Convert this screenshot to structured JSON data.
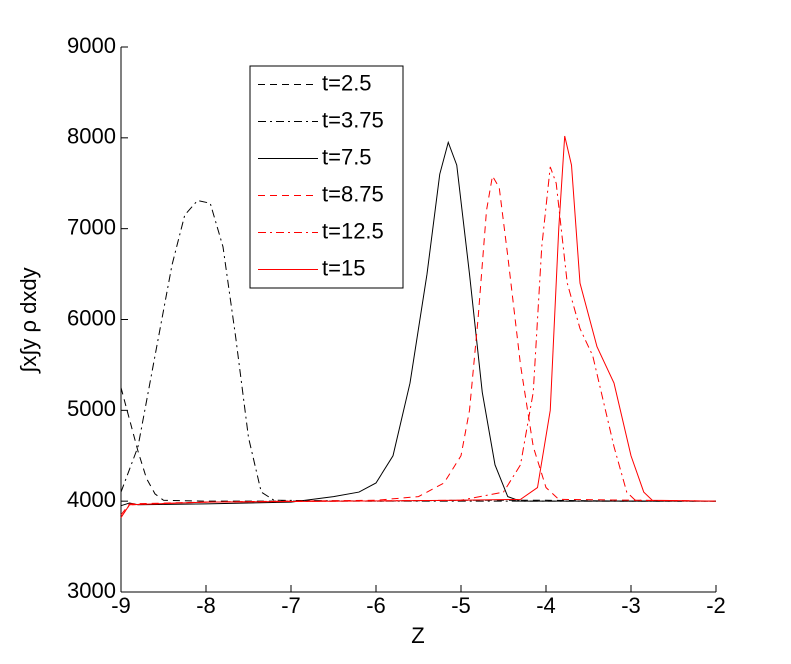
{
  "chart_data": {
    "type": "line",
    "xlabel": "Z",
    "ylabel": "∫x∫y ρ dxdy",
    "xlim": [
      -9,
      -2
    ],
    "ylim": [
      3000,
      9000
    ],
    "xticks": [
      -9,
      -8,
      -7,
      -6,
      -5,
      -4,
      -3,
      -2
    ],
    "yticks": [
      3000,
      4000,
      5000,
      6000,
      7000,
      8000,
      9000
    ],
    "grid": false,
    "legend": "upper-left",
    "series": [
      {
        "name": "t=2.5",
        "color": "#000000",
        "dash": "dashed",
        "x": [
          -9,
          -8.9,
          -8.8,
          -8.7,
          -8.6,
          -8.5,
          -8,
          -7,
          -6,
          -5,
          -4,
          -3,
          -2
        ],
        "values": [
          5250,
          4900,
          4550,
          4250,
          4080,
          4010,
          4000,
          4000,
          4000,
          4010,
          4010,
          4000,
          4000
        ]
      },
      {
        "name": "t=3.75",
        "color": "#000000",
        "dash": "dashdot",
        "x": [
          -9,
          -8.8,
          -8.6,
          -8.4,
          -8.25,
          -8.1,
          -7.95,
          -7.8,
          -7.65,
          -7.5,
          -7.35,
          -7.2,
          -6,
          -5,
          -4,
          -3,
          -2
        ],
        "values": [
          4100,
          4600,
          5600,
          6600,
          7150,
          7310,
          7280,
          6800,
          5800,
          4700,
          4100,
          4010,
          4000,
          4000,
          4000,
          4000,
          4000
        ]
      },
      {
        "name": "t=7.5",
        "color": "#000000",
        "dash": "solid",
        "x": [
          -9,
          -8.9,
          -8.8,
          -8,
          -7,
          -6.5,
          -6.2,
          -6,
          -5.8,
          -5.6,
          -5.4,
          -5.25,
          -5.15,
          -5.05,
          -4.9,
          -4.75,
          -4.6,
          -4.45,
          -4.3,
          -3,
          -2
        ],
        "values": [
          3950,
          3980,
          3960,
          3970,
          3990,
          4050,
          4100,
          4200,
          4500,
          5300,
          6500,
          7600,
          7950,
          7700,
          6500,
          5200,
          4400,
          4050,
          4000,
          4000,
          4000
        ]
      },
      {
        "name": "t=8.75",
        "color": "#ff0000",
        "dash": "dashed",
        "x": [
          -9,
          -8.9,
          -8,
          -6,
          -5.5,
          -5.2,
          -5,
          -4.9,
          -4.8,
          -4.7,
          -4.63,
          -4.55,
          -4.45,
          -4.3,
          -4.15,
          -4,
          -3.85,
          -2
        ],
        "values": [
          3850,
          3970,
          3990,
          4010,
          4050,
          4200,
          4500,
          5000,
          6000,
          7200,
          7580,
          7450,
          6700,
          5500,
          4600,
          4150,
          4020,
          4000
        ]
      },
      {
        "name": "t=12.5",
        "color": "#ff0000",
        "dash": "dashdot",
        "x": [
          -9,
          -8.9,
          -8,
          -5,
          -4.5,
          -4.3,
          -4.15,
          -4.05,
          -3.95,
          -3.88,
          -3.75,
          -3.6,
          -3.45,
          -3.3,
          -3.2,
          -3.05,
          -2.95,
          -2
        ],
        "values": [
          3820,
          3960,
          3990,
          4010,
          4100,
          4400,
          5200,
          6800,
          7680,
          7500,
          6400,
          5900,
          5600,
          5000,
          4600,
          4100,
          4010,
          4000
        ]
      },
      {
        "name": "t=15",
        "color": "#ff0000",
        "dash": "solid",
        "x": [
          -9,
          -8.9,
          -8,
          -5,
          -4.3,
          -4.1,
          -3.95,
          -3.85,
          -3.78,
          -3.7,
          -3.6,
          -3.4,
          -3.2,
          -3.1,
          -3,
          -2.85,
          -2.75,
          -2
        ],
        "values": [
          3820,
          3960,
          3990,
          4010,
          4020,
          4150,
          5000,
          7000,
          8020,
          7700,
          6400,
          5700,
          5300,
          4900,
          4500,
          4100,
          4010,
          4000
        ]
      }
    ]
  }
}
